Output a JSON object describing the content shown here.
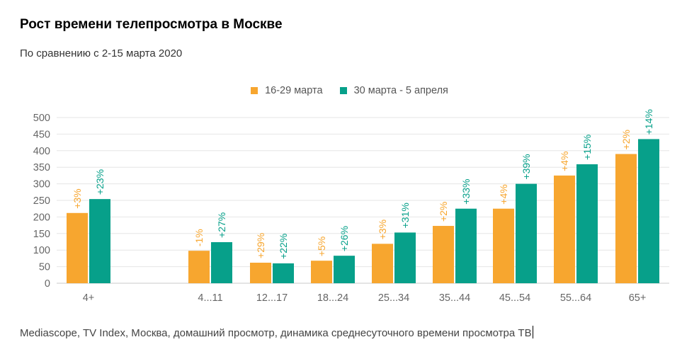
{
  "title": "Рост времени телепросмотра в Москве",
  "subtitle": "По сравнению с 2-15 марта 2020",
  "source": "Mediascope, TV Index, Москва, домашний просмотр, динамика среднесуточного времени просмотра ТВ",
  "colors": {
    "series1": "#f7a62f",
    "series2": "#07a08a",
    "grid": "#e6e6e6",
    "axis_text": "#666666"
  },
  "chart_data": {
    "type": "bar",
    "categories": [
      "4+",
      "4...11",
      "12...17",
      "18...24",
      "25...34",
      "35...44",
      "45...54",
      "55...64",
      "65+"
    ],
    "series": [
      {
        "name": "16-29 марта",
        "values": [
          212,
          98,
          62,
          68,
          119,
          173,
          225,
          325,
          390
        ],
        "labels": [
          "+3%",
          "-1%",
          "+29%",
          "+5%",
          "+3%",
          "+2%",
          "+4%",
          "+4%",
          "+2%"
        ]
      },
      {
        "name": "30 марта - 5 апреля",
        "values": [
          254,
          124,
          60,
          83,
          153,
          225,
          300,
          359,
          435
        ],
        "labels": [
          "+23%",
          "+27%",
          "+22%",
          "+26%",
          "+31%",
          "+33%",
          "+39%",
          "+15%",
          "+14%"
        ]
      }
    ],
    "yticks": [
      0,
      50,
      100,
      150,
      200,
      250,
      300,
      350,
      400,
      450,
      500
    ],
    "ylim": [
      0,
      500
    ],
    "grid": true,
    "legend": "top-center"
  }
}
